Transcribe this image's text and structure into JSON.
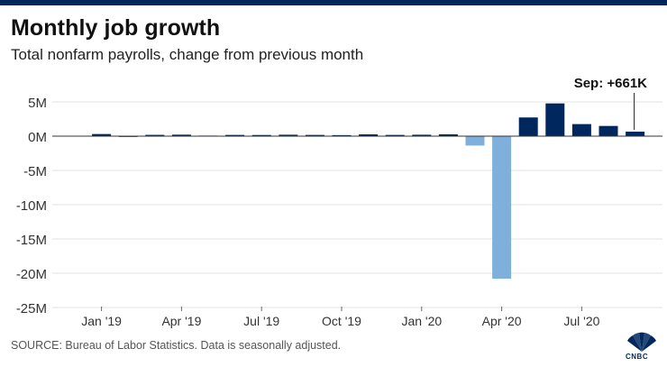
{
  "header": {
    "title": "Monthly job growth",
    "subtitle": "Total nonfarm payrolls, change from previous month"
  },
  "footer": {
    "source": "SOURCE: Bureau of Labor Statistics. Data is seasonally adjusted.",
    "logo_text": "CNBC"
  },
  "colors": {
    "positive": "#00285e",
    "negative": "#7fb0dc",
    "grid": "#e3e3e3",
    "zero_line": "#333333",
    "top_bar": "#00285e"
  },
  "chart_data": {
    "type": "bar",
    "unit": "M",
    "categories": [
      "Dec '18",
      "Jan '19",
      "Feb '19",
      "Mar '19",
      "Apr '19",
      "May '19",
      "Jun '19",
      "Jul '19",
      "Aug '19",
      "Sep '19",
      "Oct '19",
      "Nov '19",
      "Dec '19",
      "Jan '20",
      "Feb '20",
      "Mar '20",
      "Apr '20",
      "May '20",
      "Jun '20",
      "Jul '20",
      "Aug '20",
      "Sep '20"
    ],
    "values": [
      0.0,
      0.31,
      0.02,
      0.19,
      0.22,
      0.08,
      0.18,
      0.17,
      0.21,
      0.18,
      0.15,
      0.26,
      0.18,
      0.21,
      0.27,
      -1.37,
      -20.8,
      2.73,
      4.78,
      1.76,
      1.49,
      0.661
    ],
    "ylim": [
      -26,
      7
    ],
    "yticks": [
      5,
      0,
      -5,
      -10,
      -15,
      -20,
      -25
    ],
    "ytick_labels": [
      "5M",
      "0M",
      "-5M",
      "-10M",
      "-15M",
      "-20M",
      "-25M"
    ],
    "xtick_labels": [
      {
        "index": 1,
        "label": "Jan '19"
      },
      {
        "index": 4,
        "label": "Apr '19"
      },
      {
        "index": 7,
        "label": "Jul '19"
      },
      {
        "index": 10,
        "label": "Oct '19"
      },
      {
        "index": 13,
        "label": "Jan '20"
      },
      {
        "index": 16,
        "label": "Apr '20"
      },
      {
        "index": 19,
        "label": "Jul '20"
      }
    ],
    "annotation": {
      "index": 21,
      "text": "Sep: +661K"
    },
    "grid": true
  }
}
